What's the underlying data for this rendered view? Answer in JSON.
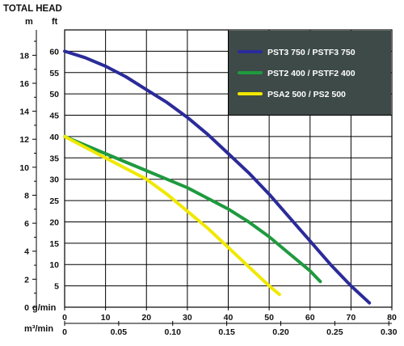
{
  "chart_data": {
    "type": "line",
    "title": "TOTAL HEAD",
    "y_units": {
      "left": "m",
      "right": "ft"
    },
    "x_units": {
      "primary": "g/min",
      "secondary": "m³/min"
    },
    "x_gpm_ticks": [
      "0",
      "10",
      "20",
      "30",
      "40",
      "50",
      "60",
      "70",
      "80"
    ],
    "x_m3_ticks": [
      "0",
      "0.05",
      "0.10",
      "0.15",
      "0.20",
      "0.25",
      "0.30"
    ],
    "y_m_ticks": [
      "0",
      "2",
      "4",
      "6",
      "8",
      "10",
      "12",
      "14",
      "16",
      "18"
    ],
    "y_ft_ticks": [
      "5",
      "10",
      "15",
      "20",
      "25",
      "30",
      "35",
      "40",
      "45",
      "50",
      "55",
      "60"
    ],
    "xlim_gpm": [
      0,
      80
    ],
    "ylim_ft": [
      0,
      65
    ],
    "grid": true,
    "legend_position": "top-right",
    "colors": {
      "legend_bg": "#3d4a48"
    },
    "series": [
      {
        "name": "PST3 750 / PSTF3 750",
        "color": "#2b2b9a",
        "points": [
          [
            0,
            60
          ],
          [
            5,
            58.5
          ],
          [
            10,
            56.5
          ],
          [
            15,
            54
          ],
          [
            20,
            51
          ],
          [
            25,
            48
          ],
          [
            30,
            44.5
          ],
          [
            35,
            40.5
          ],
          [
            40,
            36
          ],
          [
            45,
            31.5
          ],
          [
            50,
            26.5
          ],
          [
            55,
            21
          ],
          [
            60,
            15.5
          ],
          [
            65,
            10
          ],
          [
            70,
            5
          ],
          [
            74.5,
            1
          ]
        ]
      },
      {
        "name": "PST2 400 / PSTF2 400",
        "color": "#1f9a3f",
        "points": [
          [
            0,
            40
          ],
          [
            5,
            38
          ],
          [
            10,
            36
          ],
          [
            15,
            34
          ],
          [
            20,
            32
          ],
          [
            25,
            30
          ],
          [
            30,
            28
          ],
          [
            35,
            25.5
          ],
          [
            40,
            23
          ],
          [
            45,
            20
          ],
          [
            50,
            16.5
          ],
          [
            55,
            12.5
          ],
          [
            60,
            8.5
          ],
          [
            62.5,
            6
          ]
        ]
      },
      {
        "name": "PSA2 500 / PS2 500",
        "color": "#f0e800",
        "points": [
          [
            0,
            40
          ],
          [
            5,
            37.5
          ],
          [
            10,
            35
          ],
          [
            15,
            32.5
          ],
          [
            20,
            30
          ],
          [
            25,
            26.5
          ],
          [
            30,
            22.5
          ],
          [
            35,
            18.5
          ],
          [
            40,
            14
          ],
          [
            45,
            9.5
          ],
          [
            50,
            5
          ],
          [
            52.5,
            3
          ]
        ]
      }
    ]
  }
}
